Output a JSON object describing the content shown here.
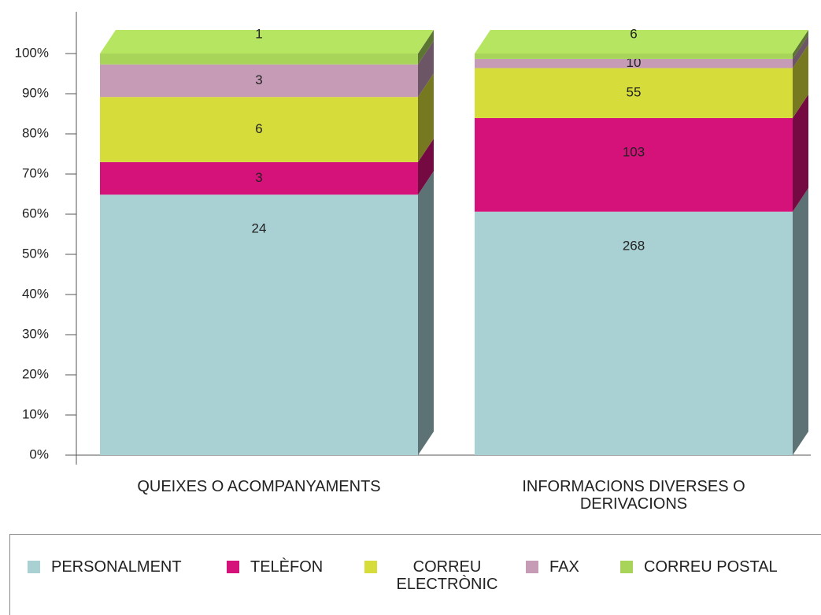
{
  "chart_data": {
    "type": "bar",
    "stacked": "percent",
    "categories": [
      "QUEIXES O ACOMPANYAMENTS",
      "INFORMACIONS DIVERSES O DERIVACIONS"
    ],
    "series": [
      {
        "name": "PERSONALMENT",
        "color": "#a9d0d3",
        "values": [
          24,
          268
        ]
      },
      {
        "name": "TELÈFON",
        "color": "#d5127a",
        "values": [
          3,
          103
        ]
      },
      {
        "name": "CORREU ELECTRÒNIC",
        "color": "#d6dc3a",
        "values": [
          6,
          55
        ]
      },
      {
        "name": "FAX",
        "color": "#c59bb6",
        "values": [
          3,
          10
        ]
      },
      {
        "name": "CORREU POSTAL",
        "color": "#a8d45a",
        "values": [
          1,
          6
        ]
      }
    ],
    "ylim": [
      0,
      100
    ],
    "yticks": [
      {
        "value": 0,
        "label": "0%"
      },
      {
        "value": 10,
        "label": "10%"
      },
      {
        "value": 20,
        "label": "20%"
      },
      {
        "value": 30,
        "label": "30%"
      },
      {
        "value": 40,
        "label": "40%"
      },
      {
        "value": 50,
        "label": "50%"
      },
      {
        "value": 60,
        "label": "60%"
      },
      {
        "value": 70,
        "label": "70%"
      },
      {
        "value": 80,
        "label": "80%"
      },
      {
        "value": 90,
        "label": "90%"
      },
      {
        "value": 100,
        "label": "100%"
      }
    ],
    "legend": "bottom"
  }
}
